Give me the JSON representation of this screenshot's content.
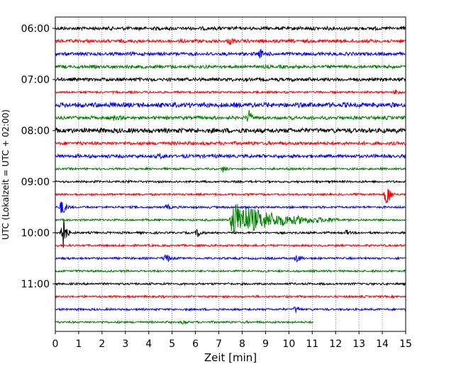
{
  "chart_data": {
    "type": "line",
    "xlabel": "Zeit  [min]",
    "ylabel": "UTC (Lokalzeit = UTC + 02:00)",
    "xlim": [
      0,
      15
    ],
    "x_ticks": [
      0,
      1,
      2,
      3,
      4,
      5,
      6,
      7,
      8,
      9,
      10,
      11,
      12,
      13,
      14,
      15
    ],
    "y_tick_labels": [
      "06:00",
      "07:00",
      "08:00",
      "09:00",
      "10:00",
      "11:00"
    ],
    "y_tick_rows": [
      0,
      4,
      8,
      12,
      16,
      20
    ],
    "grid": "vertical dotted",
    "trace_colors": [
      "#000000",
      "#ff0000",
      "#0000ff",
      "#008000"
    ],
    "traces": [
      {
        "start": "06:00",
        "end_minute": 15,
        "noise": "medium",
        "events": []
      },
      {
        "start": "06:15",
        "end_minute": 15,
        "noise": "medium",
        "events": [
          {
            "t": 7.5,
            "amp": 0.3
          }
        ]
      },
      {
        "start": "06:30",
        "end_minute": 15,
        "noise": "medium",
        "events": [
          {
            "t": 8.8,
            "amp": 0.5
          }
        ]
      },
      {
        "start": "06:45",
        "end_minute": 15,
        "noise": "medium",
        "events": []
      },
      {
        "start": "07:00",
        "end_minute": 15,
        "noise": "medium",
        "events": []
      },
      {
        "start": "07:15",
        "end_minute": 15,
        "noise": "low",
        "events": [
          {
            "t": 14.6,
            "amp": 0.3
          }
        ]
      },
      {
        "start": "07:30",
        "end_minute": 15,
        "noise": "high",
        "events": []
      },
      {
        "start": "07:45",
        "end_minute": 15,
        "noise": "medium",
        "events": [
          {
            "t": 8.3,
            "amp": 0.8
          },
          {
            "t": 2.5,
            "amp": 0.3
          }
        ]
      },
      {
        "start": "08:00",
        "end_minute": 15,
        "noise": "high",
        "events": []
      },
      {
        "start": "08:15",
        "end_minute": 15,
        "noise": "medium",
        "events": []
      },
      {
        "start": "08:30",
        "end_minute": 15,
        "noise": "medium",
        "events": [
          {
            "t": 4.5,
            "amp": 0.3
          }
        ]
      },
      {
        "start": "08:45",
        "end_minute": 15,
        "noise": "low",
        "events": [
          {
            "t": 7.2,
            "amp": 0.4
          }
        ]
      },
      {
        "start": "09:00",
        "end_minute": 15,
        "noise": "low",
        "events": []
      },
      {
        "start": "09:15",
        "end_minute": 15,
        "noise": "low",
        "events": [
          {
            "t": 14.2,
            "amp": 1.8
          }
        ]
      },
      {
        "start": "09:30",
        "end_minute": 15,
        "noise": "low",
        "events": [
          {
            "t": 0.3,
            "amp": 1.2
          },
          {
            "t": 4.8,
            "amp": 0.3
          }
        ]
      },
      {
        "start": "09:45",
        "end_minute": 15,
        "noise": "low",
        "events": [
          {
            "t": 7.6,
            "amp": 2.4,
            "duration": 4.5
          }
        ]
      },
      {
        "start": "10:00",
        "end_minute": 15,
        "noise": "low",
        "events": [
          {
            "t": 0.3,
            "amp": 3.0
          },
          {
            "t": 6.1,
            "amp": 0.5
          },
          {
            "t": 12.5,
            "amp": 0.3
          }
        ]
      },
      {
        "start": "10:15",
        "end_minute": 15,
        "noise": "low",
        "events": []
      },
      {
        "start": "10:30",
        "end_minute": 15,
        "noise": "low",
        "events": [
          {
            "t": 4.75,
            "amp": 0.7
          },
          {
            "t": 10.35,
            "amp": 0.5
          }
        ]
      },
      {
        "start": "10:45",
        "end_minute": 15,
        "noise": "low",
        "events": []
      },
      {
        "start": "11:00",
        "end_minute": 15,
        "noise": "low",
        "events": []
      },
      {
        "start": "11:15",
        "end_minute": 15,
        "noise": "low",
        "events": []
      },
      {
        "start": "11:30",
        "end_minute": 15,
        "noise": "low",
        "events": [
          {
            "t": 10.3,
            "amp": 0.4
          }
        ]
      },
      {
        "start": "11:45",
        "end_minute": 11.05,
        "noise": "low",
        "events": [
          {
            "t": 5.5,
            "amp": 0.2
          }
        ]
      }
    ]
  }
}
